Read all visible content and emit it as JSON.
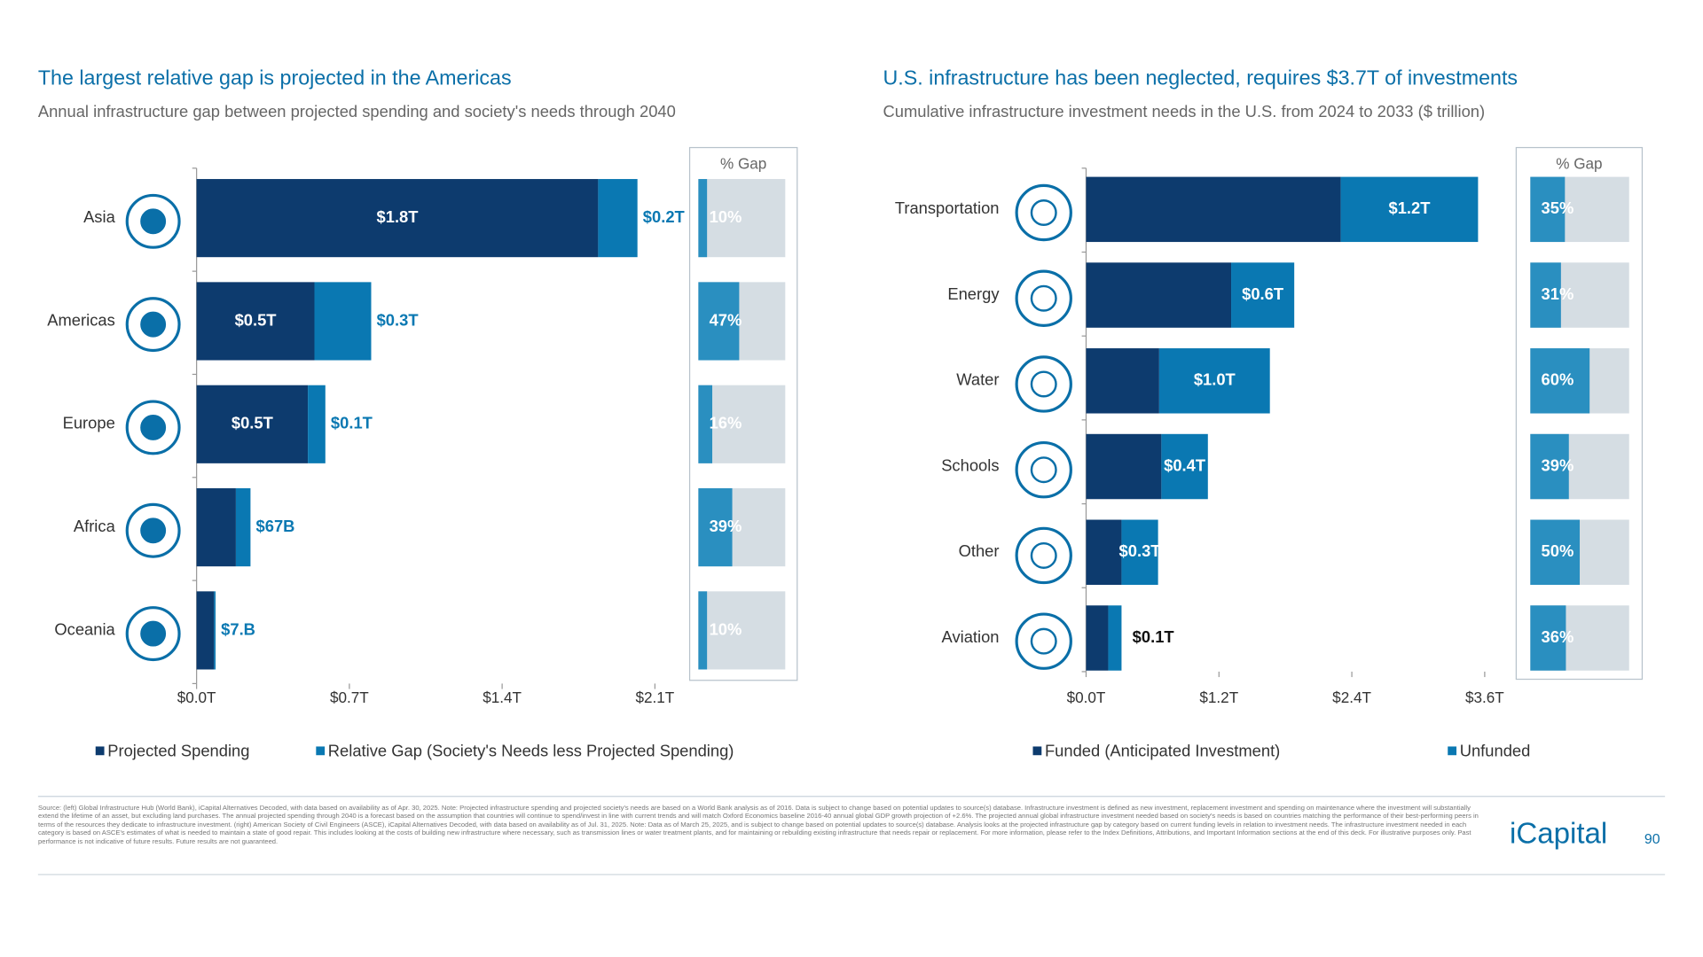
{
  "chart_data": [
    {
      "type": "bar",
      "orientation": "horizontal",
      "stacked": true,
      "title": "The largest relative gap is projected in the Americas",
      "subtitle": "Annual infrastructure gap between projected spending and society's needs through 2040",
      "categories": [
        "Asia",
        "Americas",
        "Europe",
        "Africa",
        "Oceania"
      ],
      "series": [
        {
          "name": "Projected Spending",
          "color": "#0d3b6e",
          "values": [
            1.84,
            0.54,
            0.51,
            0.18,
            0.08
          ],
          "value_labels": [
            "$1.8T",
            "$0.5T",
            "$0.5T",
            null,
            null
          ]
        },
        {
          "name": "Relative Gap (Society's Needs less Projected Spending)",
          "color": "#0a78b2",
          "values": [
            0.18,
            0.26,
            0.08,
            0.067,
            0.007
          ],
          "value_labels": [
            "$0.2T",
            "$0.3T",
            "$0.1T",
            "$67B",
            "$7.B"
          ]
        }
      ],
      "xlim": [
        0,
        2.1
      ],
      "xticks": [
        {
          "value": 0,
          "label": "$0.0T"
        },
        {
          "value": 0.7,
          "label": "$0.7T"
        },
        {
          "value": 1.4,
          "label": "$1.4T"
        },
        {
          "value": 2.1,
          "label": "$2.1T"
        }
      ],
      "pct_gap": {
        "title": "% Gap",
        "color": "#2a8fc0",
        "values": [
          10,
          47,
          16,
          39,
          10
        ],
        "value_labels": [
          "10%",
          "47%",
          "16%",
          "39%",
          "10%"
        ],
        "xlim": [
          0,
          100
        ]
      }
    },
    {
      "type": "bar",
      "orientation": "horizontal",
      "stacked": true,
      "title": "U.S. infrastructure has been neglected, requires $3.7T of investments",
      "subtitle": "Cumulative infrastructure investment needs in the U.S. from 2024 to 2033 ($ trillion)",
      "categories": [
        "Transportation",
        "Energy",
        "Water",
        "Schools",
        "Other",
        "Aviation"
      ],
      "series": [
        {
          "name": "Funded (Anticipated Investment)",
          "color": "#0d3b6e",
          "values": [
            2.3,
            1.31,
            0.66,
            0.68,
            0.32,
            0.2
          ],
          "value_labels": [
            null,
            null,
            null,
            null,
            null,
            null
          ]
        },
        {
          "name": "Unfunded",
          "color": "#0a78b2",
          "values": [
            1.24,
            0.57,
            1.0,
            0.42,
            0.33,
            0.12
          ],
          "value_labels": [
            "$1.2T",
            "$0.6T",
            "$1.0T",
            "$0.4T",
            "$0.3T",
            "$0.1T"
          ]
        }
      ],
      "xlim": [
        0,
        3.6
      ],
      "xticks": [
        {
          "value": 0,
          "label": "$0.0T"
        },
        {
          "value": 1.2,
          "label": "$1.2T"
        },
        {
          "value": 2.4,
          "label": "$2.4T"
        },
        {
          "value": 3.6,
          "label": "$3.6T"
        }
      ],
      "pct_gap": {
        "title": "% Gap",
        "color": "#2a8fc0",
        "values": [
          35,
          31,
          60,
          39,
          50,
          36
        ],
        "value_labels": [
          "35%",
          "31%",
          "60%",
          "39%",
          "50%",
          "36%"
        ],
        "xlim": [
          0,
          100
        ]
      }
    }
  ],
  "footer": {
    "source": "Source: (left) Global Infrastructure Hub (World Bank), iCapital Alternatives Decoded, with data based on availability as of Apr. 30, 2025. Note: Projected infrastructure spending and projected society's needs are based on a World Bank analysis as of 2016. Data is subject to change based on potential updates to source(s) database. Infrastructure investment is defined as new investment, replacement investment and spending on maintenance where the investment will substantially extend the lifetime of an asset, but excluding land purchases. The annual projected spending through 2040 is a forecast based on the assumption that countries will continue to spend/invest in line with current trends and will match Oxford Economics baseline 2016-40 annual global GDP growth projection of +2.6%. The projected annual global infrastructure investment needed based on society's needs is based on countries matching the performance of their best-performing peers in terms of the resources they dedicate to infrastructure investment. (right) American Society of Civil Engineers (ASCE), iCapital Alternatives Decoded, with data based on availability as of Jul. 31, 2025. Note: Data as of March 25, 2025, and is subject to change based on potential updates to source(s) database. Analysis looks at the projected infrastructure gap by category based on current funding levels in relation to investment needs. The infrastructure investment needed in each category is based on ASCE's estimates of what is needed to maintain a state of good repair. This includes looking at the costs of building new infrastructure where necessary, such as transmission lines or water treatment plants, and for maintaining or rebuilding existing infrastructure that needs repair or replacement. For more information, please refer to the Index Definitions, Attributions, and Important Information sections at the end of this deck. For illustrative purposes only. Past performance is not indicative of future results. Future results are not guaranteed.",
    "logo": "iCapital",
    "page": "90"
  }
}
